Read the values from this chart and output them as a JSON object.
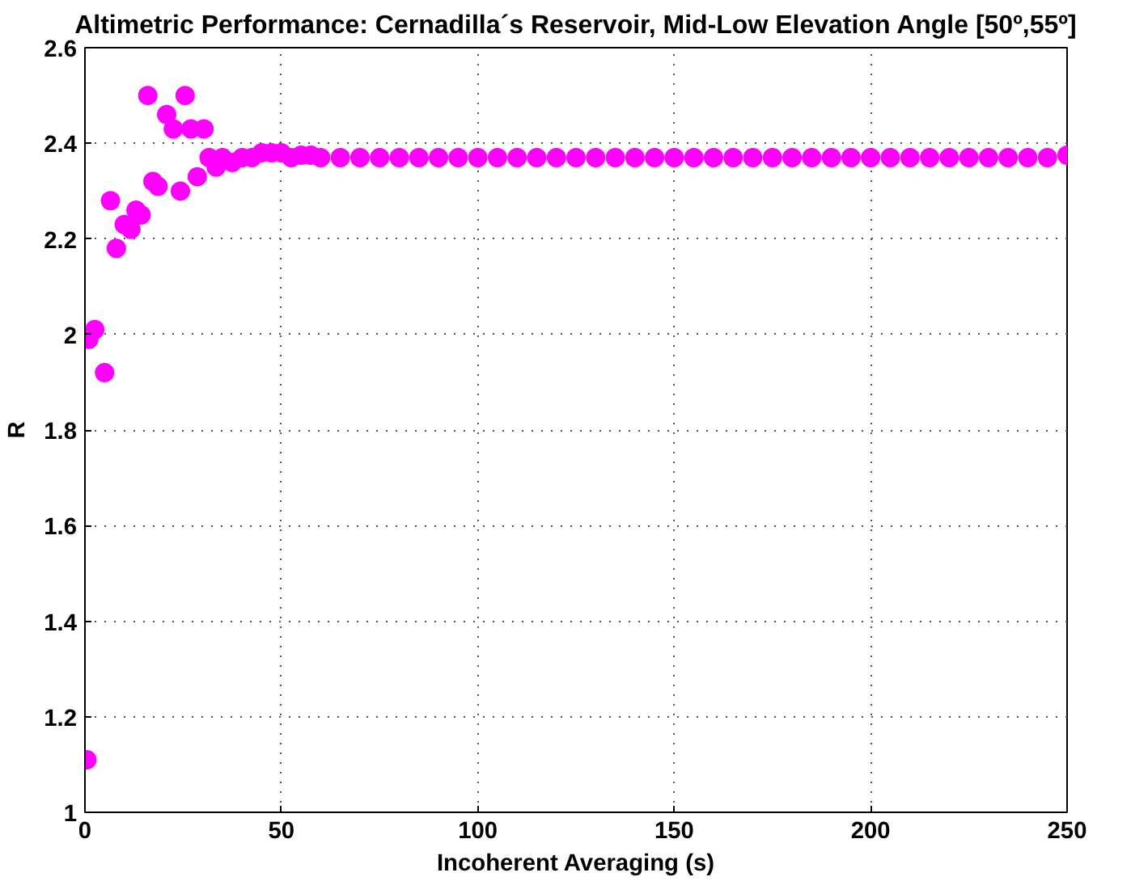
{
  "chart_data": {
    "type": "scatter",
    "title": "Altimetric Performance: Cernadilla´s Reservoir, Mid-Low Elevation Angle [50º,55º]",
    "xlabel": "Incoherent Averaging (s)",
    "ylabel": "R",
    "x": [
      0.5,
      1,
      2.5,
      5,
      6.5,
      8,
      10,
      11.7,
      13,
      14.3,
      16,
      17.3,
      18.6,
      20.8,
      22.5,
      24.3,
      25.5,
      27,
      28.6,
      30.3,
      31.6,
      33.4,
      35,
      37.5,
      40,
      42.5,
      45,
      47.5,
      50,
      52.5,
      55,
      57.5,
      60,
      65,
      70,
      75,
      80,
      85,
      90,
      95,
      100,
      105,
      110,
      115,
      120,
      125,
      130,
      135,
      140,
      145,
      150,
      155,
      160,
      165,
      170,
      175,
      180,
      185,
      190,
      195,
      200,
      205,
      210,
      215,
      220,
      225,
      230,
      235,
      240,
      245,
      250
    ],
    "series": [
      {
        "color": "#ff00ff",
        "values": [
          1.11,
          1.99,
          2.01,
          1.92,
          2.28,
          2.18,
          2.23,
          2.22,
          2.26,
          2.25,
          2.5,
          2.32,
          2.31,
          2.46,
          2.43,
          2.3,
          2.5,
          2.43,
          2.33,
          2.43,
          2.37,
          2.35,
          2.37,
          2.36,
          2.37,
          2.37,
          2.38,
          2.38,
          2.38,
          2.37,
          2.375,
          2.375,
          2.37,
          2.37,
          2.37,
          2.37,
          2.37,
          2.37,
          2.37,
          2.37,
          2.37,
          2.37,
          2.37,
          2.37,
          2.37,
          2.37,
          2.37,
          2.37,
          2.37,
          2.37,
          2.37,
          2.37,
          2.37,
          2.37,
          2.37,
          2.37,
          2.37,
          2.37,
          2.37,
          2.37,
          2.37,
          2.37,
          2.37,
          2.37,
          2.37,
          2.37,
          2.37,
          2.37,
          2.37,
          2.37,
          2.375
        ]
      }
    ],
    "xlim": [
      0,
      250
    ],
    "ylim": [
      1,
      2.6
    ],
    "xticks": [
      0,
      50,
      100,
      150,
      200,
      250
    ],
    "yticks": [
      1,
      {
        "value": 1.2,
        "label": "1.2"
      },
      1.4,
      1.6,
      1.8,
      2,
      2.2,
      2.4,
      2.6
    ],
    "grid": true,
    "marker": "circle"
  }
}
